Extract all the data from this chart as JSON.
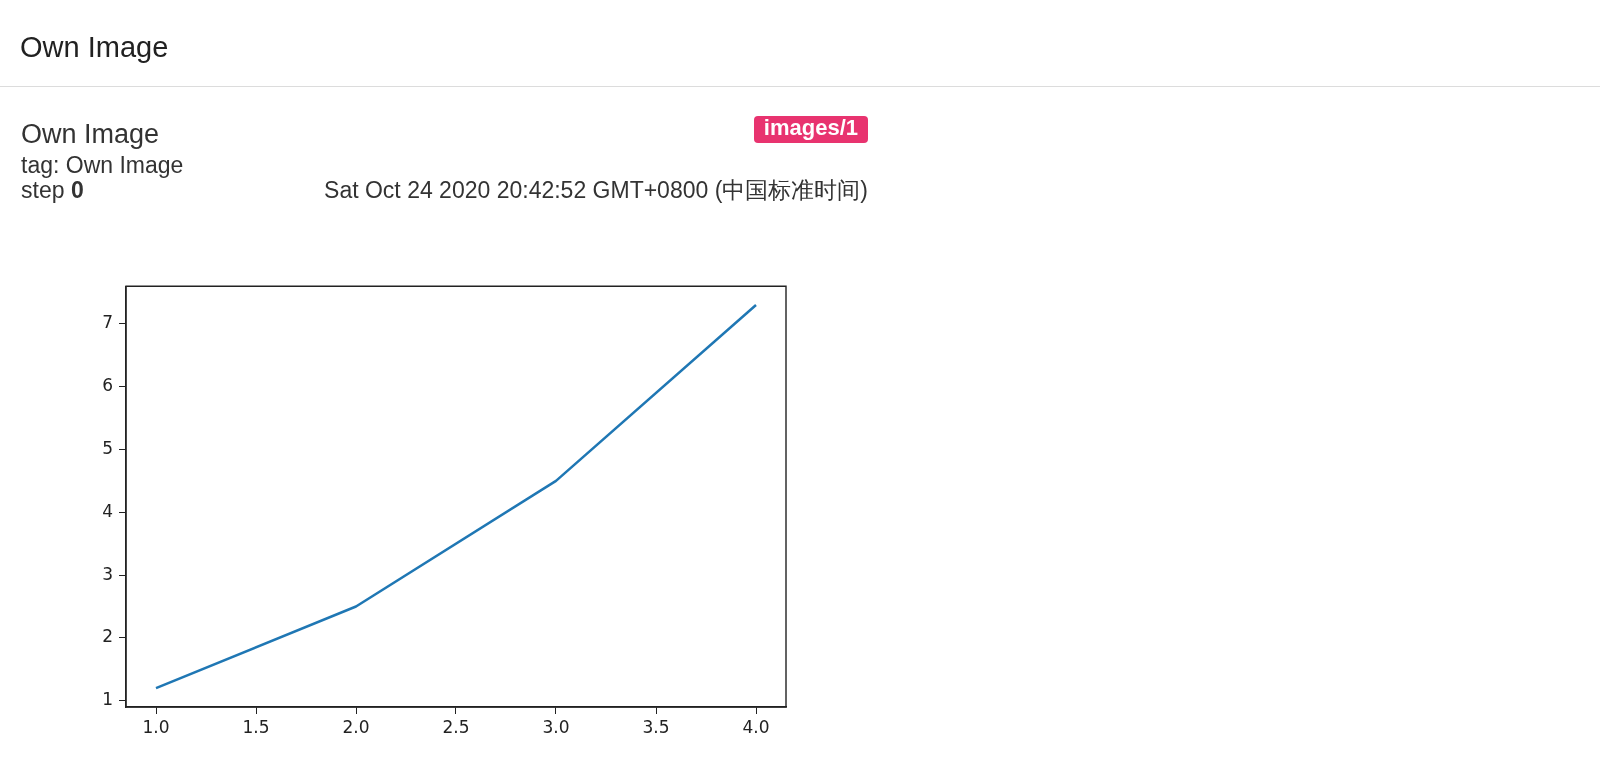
{
  "chart_data": {
    "type": "line",
    "title": "Own Image",
    "subtitle": "Own Image",
    "annotations": [
      "tag: Own Image",
      "step 0",
      "images/1",
      "Sat Oct 24 2020 20:42:52 GMT+0800 (中国标准时间)"
    ],
    "x": [
      1,
      2,
      3,
      4
    ],
    "values": [
      1.2,
      2.5,
      4.5,
      7.3
    ],
    "color": "#1f77b4",
    "xlim": [
      0.85,
      4.15
    ],
    "xticks": [
      {
        "value": 1,
        "label": "1.0"
      },
      1.5,
      {
        "value": 2,
        "label": "2.0"
      },
      2.5,
      {
        "value": 3,
        "label": "3.0"
      },
      3.5,
      {
        "value": 4,
        "label": "4.0"
      }
    ],
    "ylim": [
      0.9,
      7.6
    ],
    "yticks": [
      1,
      2,
      3,
      4,
      5,
      6,
      7
    ],
    "grid": false,
    "marker": "none",
    "line_style": "solid"
  }
}
